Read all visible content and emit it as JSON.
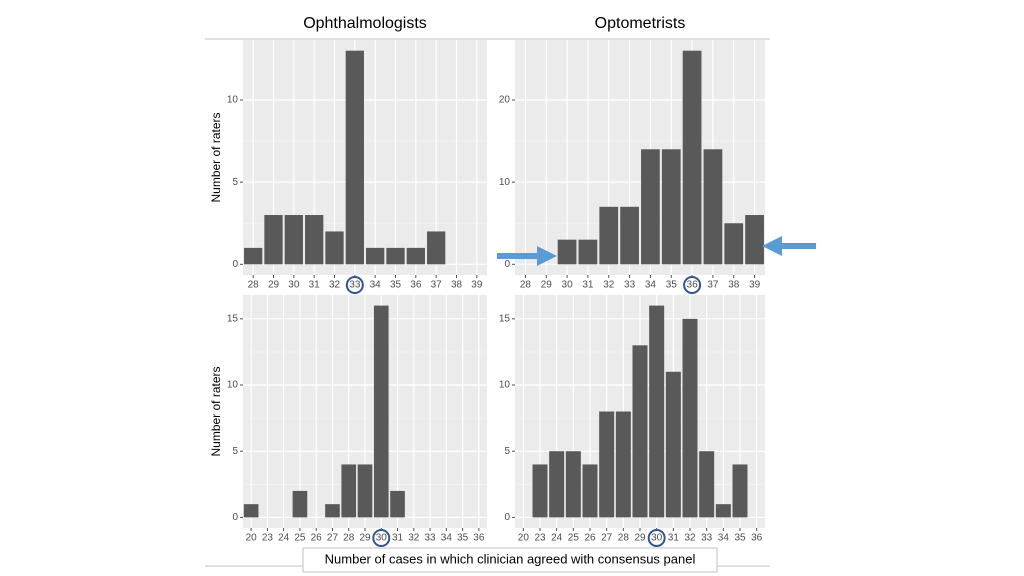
{
  "chart_data": [
    {
      "type": "bar",
      "title": "Ophthalmologists",
      "y_label": "Number of raters",
      "categories": [
        "28",
        "29",
        "30",
        "31",
        "32",
        "33",
        "34",
        "35",
        "36",
        "37",
        "38",
        "39"
      ],
      "values": [
        1,
        3,
        3,
        3,
        2,
        13,
        1,
        1,
        1,
        2,
        0,
        0
      ],
      "ylim": [
        -0.65,
        13.65
      ],
      "yticks": [
        0,
        5,
        10
      ],
      "color": "#595959",
      "grid": true,
      "highlight": "33"
    },
    {
      "type": "bar",
      "title": "Optometrists",
      "categories": [
        "28",
        "29",
        "30",
        "31",
        "32",
        "33",
        "34",
        "35",
        "36",
        "37",
        "38",
        "39"
      ],
      "values": [
        0,
        0,
        3,
        3,
        7,
        7,
        14,
        14,
        26,
        14,
        5,
        6
      ],
      "ylim": [
        -1.3,
        27.3
      ],
      "yticks": [
        0,
        10,
        20
      ],
      "color": "#595959",
      "grid": true,
      "highlight": "36"
    },
    {
      "type": "bar",
      "y_label": "Number of raters",
      "categories": [
        "20",
        "23",
        "24",
        "25",
        "26",
        "27",
        "28",
        "29",
        "30",
        "31",
        "32",
        "33",
        "34",
        "35",
        "36"
      ],
      "values": [
        1,
        0,
        0,
        2,
        0,
        1,
        4,
        4,
        16,
        2,
        0,
        0,
        0,
        0,
        0
      ],
      "ylim": [
        -0.8,
        16.8
      ],
      "yticks": [
        0,
        5,
        10,
        15
      ],
      "color": "#595959",
      "grid": true,
      "highlight": "30"
    },
    {
      "type": "bar",
      "categories": [
        "20",
        "23",
        "24",
        "25",
        "26",
        "27",
        "28",
        "29",
        "30",
        "31",
        "32",
        "33",
        "34",
        "35",
        "36"
      ],
      "values": [
        0,
        4,
        5,
        5,
        4,
        8,
        8,
        13,
        16,
        11,
        15,
        5,
        1,
        4,
        0
      ],
      "ylim": [
        -0.8,
        16.8
      ],
      "yticks": [
        0,
        5,
        10,
        15
      ],
      "color": "#595959",
      "grid": true,
      "highlight": "30"
    }
  ],
  "x_label": "Number of cases in which clinician agreed with consensus panel"
}
